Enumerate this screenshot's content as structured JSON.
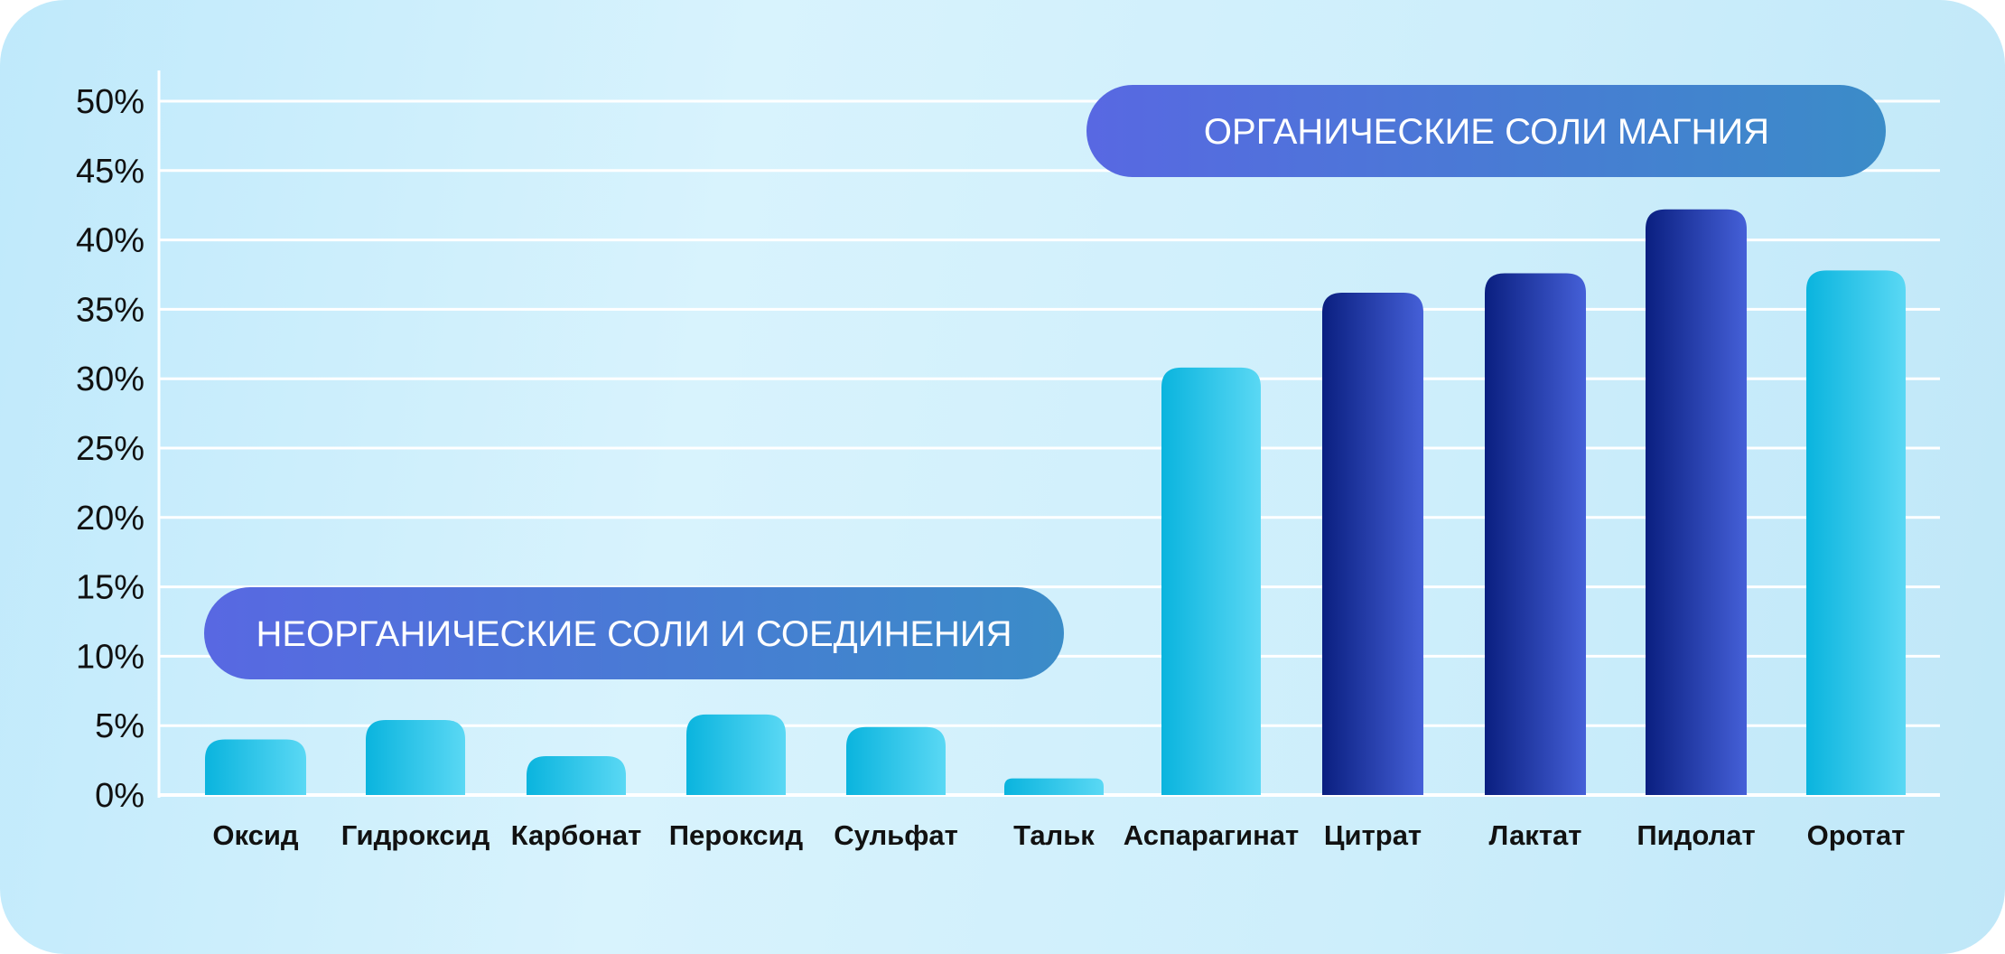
{
  "chart_data": {
    "type": "bar",
    "title": "",
    "xlabel": "",
    "ylabel": "",
    "ylim": [
      0,
      50
    ],
    "yticks": [
      "0%",
      "5%",
      "10%",
      "15%",
      "20%",
      "25%",
      "30%",
      "35%",
      "40%",
      "45%",
      "50%"
    ],
    "grid": true,
    "categories": [
      "Оксид",
      "Гидроксид",
      "Карбонат",
      "Пероксид",
      "Сульфат",
      "Тальк",
      "Аспарагинат",
      "Цитрат",
      "Лактат",
      "Пидолат",
      "Оротат"
    ],
    "values": [
      4,
      5.4,
      2.8,
      5.8,
      4.9,
      1.2,
      30.8,
      36.2,
      37.6,
      42.2,
      37.8
    ],
    "bar_styles": [
      "light",
      "light",
      "light",
      "light",
      "light",
      "light",
      "light",
      "dark",
      "dark",
      "dark",
      "light"
    ],
    "groups": [
      {
        "label": "НЕОРГАНИЧЕСКИЕ СОЛИ И СОЕДИНЕНИЯ"
      },
      {
        "label": "ОРГАНИЧЕСКИЕ СОЛИ МАГНИЯ"
      }
    ]
  },
  "colors": {
    "gridline": "#ffffff",
    "bar_light_start": "#0ab4de",
    "bar_light_end": "#5ad8f4",
    "bar_dark_start": "#0a1f80",
    "bar_dark_end": "#4560d8",
    "badge_start": "#5868e2",
    "badge_end": "#3b8cc8"
  }
}
